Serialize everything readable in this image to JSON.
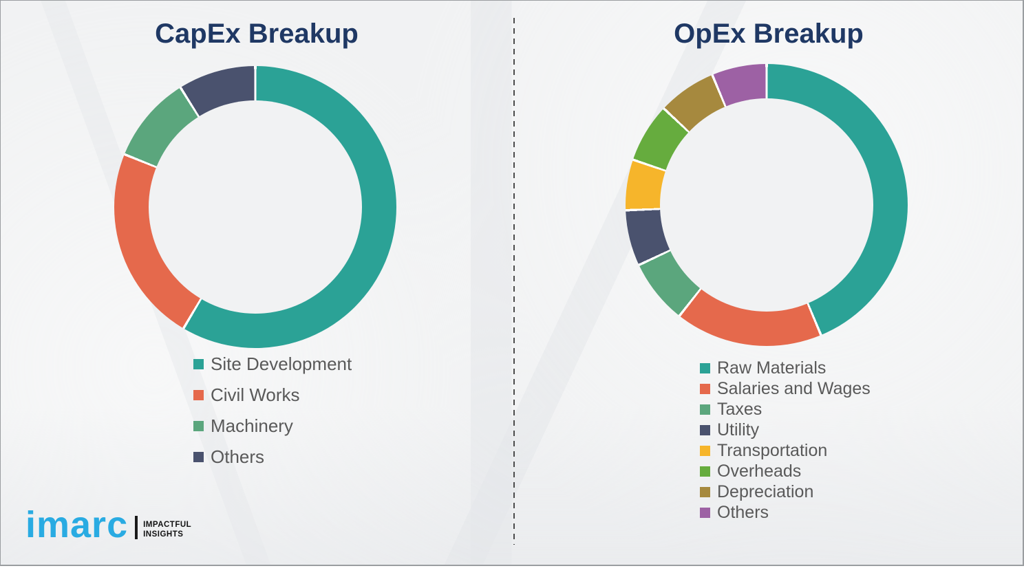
{
  "chart_data": [
    {
      "type": "donut",
      "title": "CapEx Breakup",
      "categories": [
        "Site Development",
        "Civil Works",
        "Machinery",
        "Others"
      ],
      "values": [
        58.5,
        22.6,
        10.0,
        8.9
      ],
      "unit": "percent-estimated",
      "colors": [
        "#2BA296",
        "#E5694C",
        "#5BA67D",
        "#4A526E"
      ],
      "start_angle_deg": 0,
      "direction": "clockwise",
      "legend_position": "below-left",
      "data_labels": "none"
    },
    {
      "type": "donut",
      "title": "OpEx Breakup",
      "categories": [
        "Raw Materials",
        "Salaries and Wages",
        "Taxes",
        "Utility",
        "Transportation",
        "Overheads",
        "Depreciation",
        "Others"
      ],
      "values": [
        43.7,
        16.9,
        7.4,
        6.4,
        5.8,
        6.8,
        6.7,
        6.3
      ],
      "unit": "percent-estimated",
      "colors": [
        "#2BA296",
        "#E5694C",
        "#5BA67D",
        "#4A526E",
        "#F6B52B",
        "#66AC3E",
        "#A6893E",
        "#9D61A4"
      ],
      "start_angle_deg": 0,
      "direction": "clockwise",
      "legend_position": "below-left",
      "data_labels": "none"
    }
  ],
  "styles": {
    "background": "#F1F2F3",
    "title_color": "#1F3864",
    "legend_text_color": "#595959",
    "divider_color": "#4A4A4A",
    "border_color": "#9A9DA0",
    "segment_gap_color": "#FFFFFF"
  },
  "logo": {
    "text": "imarc",
    "tagline": [
      "IMPACTFUL",
      "INSIGHTS"
    ],
    "brand_color": "#29ABE2"
  }
}
